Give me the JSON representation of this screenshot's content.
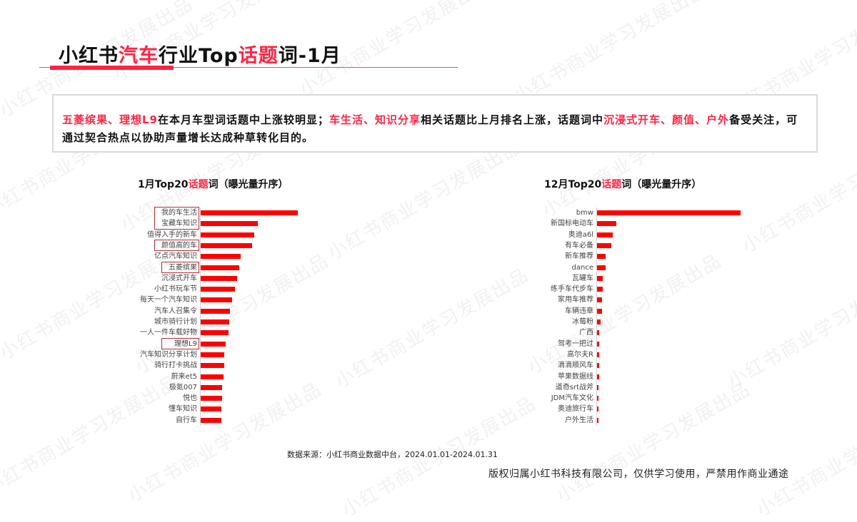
{
  "title": {
    "part1": "小红书",
    "part2_highlight": "汽车",
    "part3": "行业Top",
    "part4_highlight": "话题",
    "part5": "词-1月"
  },
  "summary": {
    "segments": [
      {
        "text": "五菱缤果、理想L9",
        "highlight": true
      },
      {
        "text": "在本月车型词话题中上涨较明显；",
        "highlight": false
      },
      {
        "text": "车生活、知识分享",
        "highlight": true
      },
      {
        "text": "相关话题比上月排名上涨，话题词中",
        "highlight": false
      },
      {
        "text": "沉浸式开车、颜值、户外",
        "highlight": true
      },
      {
        "text": "备受关注，可通过契合热点以协助声量增长达成种草转化目的。",
        "highlight": false
      }
    ]
  },
  "colors": {
    "accent": "#ff2442",
    "bar": "#ff0000",
    "box": "#b0303a"
  },
  "watermark": "小红书商业学习发展出品",
  "chart_data": [
    {
      "type": "bar",
      "orientation": "horizontal",
      "title": "1月Top20话题词（曝光量升序）",
      "title_parts": {
        "pre": "1月Top20",
        "hl": "话题",
        "post": "词（曝光量升序）"
      },
      "xlabel": "",
      "ylabel": "",
      "grid": false,
      "legend": null,
      "note": "No numeric axis shown; values are relative bar lengths (px) read from the image",
      "categories": [
        "我的车生活",
        "宝藏车知识",
        "值得入手的新车",
        "颜值高的车",
        "亿点汽车知识",
        "五菱缤果",
        "沉浸式开车",
        "小红书玩车节",
        "每天一个汽车知识",
        "汽车人召集令",
        "城市骑行计划",
        "一人一件车载好物",
        "理想L9",
        "汽车知识分享计划",
        "骑行打卡挑战",
        "蔚来et5",
        "极氪007",
        "悦也",
        "懂车知识",
        "自行车"
      ],
      "values": [
        136,
        80,
        75,
        72,
        56,
        54,
        51,
        48,
        44,
        41,
        40,
        39,
        35,
        33,
        33,
        32,
        30,
        30,
        29,
        29
      ],
      "highlighted": [
        "我的车生活",
        "宝藏车知识",
        "颜值高的车",
        "五菱缤果",
        "理想L9"
      ]
    },
    {
      "type": "bar",
      "orientation": "horizontal",
      "title": "12月Top20话题词（曝光量升序）",
      "title_parts": {
        "pre": "12月Top20",
        "hl": "话题",
        "post": "词（曝光量升序）"
      },
      "xlabel": "",
      "ylabel": "",
      "grid": false,
      "legend": null,
      "note": "No numeric axis shown; values are relative bar lengths (px) read from the image",
      "categories": [
        "bmw",
        "新国标电动车",
        "奥迪a6l",
        "有车必备",
        "新车推荐",
        "dance",
        "瓦罐车",
        "练手车代步车",
        "家用车推荐",
        "车辆违章",
        "冰莓粉",
        "广西",
        "驾考一把过",
        "高尔夫R",
        "滴滴顺风车",
        "苹果数据线",
        "道奇srt战斧",
        "JDM汽车文化",
        "奥迪旅行车",
        "户外生活"
      ],
      "values": [
        201,
        27,
        22,
        20,
        12,
        12,
        8,
        8,
        7,
        7,
        5,
        3,
        3,
        3,
        3,
        3,
        2,
        2,
        2,
        2
      ],
      "highlighted": []
    }
  ],
  "footer": {
    "source": "数据来源：小红书商业数据中台，2024.01.01-2024.01.31",
    "copyright": "版权归属小红书科技有限公司，仅供学习使用，严禁用作商业通途"
  }
}
